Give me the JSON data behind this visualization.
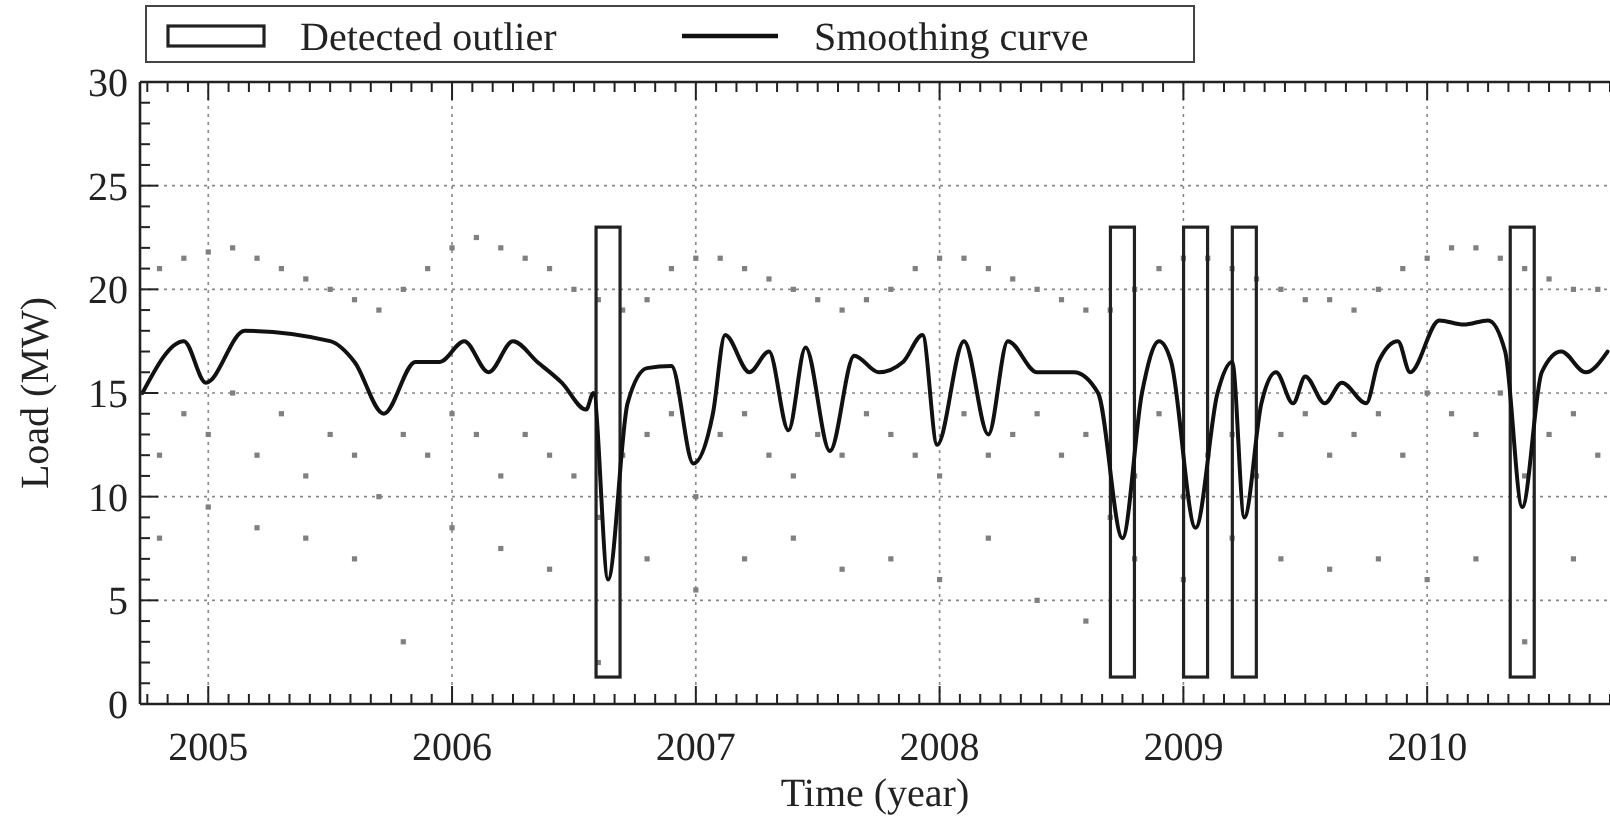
{
  "chart_data": {
    "type": "scatter",
    "xlabel": "Time (year)",
    "ylabel": "Load (MW)",
    "xlim": [
      2004.72,
      2010.75
    ],
    "ylim": [
      0,
      30
    ],
    "xticks": [
      {
        "value": 2004.75,
        "label": null
      },
      {
        "value": 2004.8333,
        "label": null
      },
      {
        "value": 2004.9167,
        "label": null
      },
      2005,
      {
        "value": 2005.0833,
        "label": null
      },
      {
        "value": 2005.1667,
        "label": null
      },
      {
        "value": 2005.25,
        "label": null
      },
      {
        "value": 2005.3333,
        "label": null
      },
      {
        "value": 2005.4167,
        "label": null
      },
      {
        "value": 2005.5,
        "label": null
      },
      {
        "value": 2005.5833,
        "label": null
      },
      {
        "value": 2005.6667,
        "label": null
      },
      {
        "value": 2005.75,
        "label": null
      },
      {
        "value": 2005.8333,
        "label": null
      },
      {
        "value": 2005.9167,
        "label": null
      },
      2006,
      {
        "value": 2006.0833,
        "label": null
      },
      {
        "value": 2006.1667,
        "label": null
      },
      {
        "value": 2006.25,
        "label": null
      },
      {
        "value": 2006.3333,
        "label": null
      },
      {
        "value": 2006.4167,
        "label": null
      },
      {
        "value": 2006.5,
        "label": null
      },
      {
        "value": 2006.5833,
        "label": null
      },
      {
        "value": 2006.6667,
        "label": null
      },
      {
        "value": 2006.75,
        "label": null
      },
      {
        "value": 2006.8333,
        "label": null
      },
      {
        "value": 2006.9167,
        "label": null
      },
      2007,
      {
        "value": 2007.0833,
        "label": null
      },
      {
        "value": 2007.1667,
        "label": null
      },
      {
        "value": 2007.25,
        "label": null
      },
      {
        "value": 2007.3333,
        "label": null
      },
      {
        "value": 2007.4167,
        "label": null
      },
      {
        "value": 2007.5,
        "label": null
      },
      {
        "value": 2007.5833,
        "label": null
      },
      {
        "value": 2007.6667,
        "label": null
      },
      {
        "value": 2007.75,
        "label": null
      },
      {
        "value": 2007.8333,
        "label": null
      },
      {
        "value": 2007.9167,
        "label": null
      },
      2008,
      {
        "value": 2008.0833,
        "label": null
      },
      {
        "value": 2008.1667,
        "label": null
      },
      {
        "value": 2008.25,
        "label": null
      },
      {
        "value": 2008.3333,
        "label": null
      },
      {
        "value": 2008.4167,
        "label": null
      },
      {
        "value": 2008.5,
        "label": null
      },
      {
        "value": 2008.5833,
        "label": null
      },
      {
        "value": 2008.6667,
        "label": null
      },
      {
        "value": 2008.75,
        "label": null
      },
      {
        "value": 2008.8333,
        "label": null
      },
      {
        "value": 2008.9167,
        "label": null
      },
      2009,
      {
        "value": 2009.0833,
        "label": null
      },
      {
        "value": 2009.1667,
        "label": null
      },
      {
        "value": 2009.25,
        "label": null
      },
      {
        "value": 2009.3333,
        "label": null
      },
      {
        "value": 2009.4167,
        "label": null
      },
      {
        "value": 2009.5,
        "label": null
      },
      {
        "value": 2009.5833,
        "label": null
      },
      {
        "value": 2009.6667,
        "label": null
      },
      {
        "value": 2009.75,
        "label": null
      },
      {
        "value": 2009.8333,
        "label": null
      },
      {
        "value": 2009.9167,
        "label": null
      },
      2010,
      {
        "value": 2010.0833,
        "label": null
      },
      {
        "value": 2010.1667,
        "label": null
      },
      {
        "value": 2010.25,
        "label": null
      },
      {
        "value": 2010.3333,
        "label": null
      },
      {
        "value": 2010.4167,
        "label": null
      },
      {
        "value": 2010.5,
        "label": null
      },
      {
        "value": 2010.5833,
        "label": null
      },
      {
        "value": 2010.6667,
        "label": null
      },
      {
        "value": 2010.75,
        "label": null
      }
    ],
    "yticks": [
      0,
      {
        "value": 1,
        "label": null
      },
      {
        "value": 2,
        "label": null
      },
      {
        "value": 3,
        "label": null
      },
      {
        "value": 4,
        "label": null
      },
      5,
      {
        "value": 6,
        "label": null
      },
      {
        "value": 7,
        "label": null
      },
      {
        "value": 8,
        "label": null
      },
      {
        "value": 9,
        "label": null
      },
      10,
      {
        "value": 11,
        "label": null
      },
      {
        "value": 12,
        "label": null
      },
      {
        "value": 13,
        "label": null
      },
      {
        "value": 14,
        "label": null
      },
      15,
      {
        "value": 16,
        "label": null
      },
      {
        "value": 17,
        "label": null
      },
      {
        "value": 18,
        "label": null
      },
      {
        "value": 19,
        "label": null
      },
      20,
      {
        "value": 21,
        "label": null
      },
      {
        "value": 22,
        "label": null
      },
      {
        "value": 23,
        "label": null
      },
      {
        "value": 24,
        "label": null
      },
      25,
      {
        "value": 26,
        "label": null
      },
      {
        "value": 27,
        "label": null
      },
      {
        "value": 28,
        "label": null
      },
      {
        "value": 29,
        "label": null
      },
      30
    ],
    "grid": true,
    "legend": "top left",
    "series": [
      {
        "color": "#808080",
        "marker": "square",
        "x": [
          2004.8,
          2004.9,
          2005.0,
          2005.1,
          2005.2,
          2005.3,
          2005.4,
          2005.5,
          2005.6,
          2005.7,
          2005.8,
          2005.9,
          2006.0,
          2006.1,
          2006.2,
          2006.3,
          2006.4,
          2006.5,
          2006.6,
          2006.7,
          2006.8,
          2006.9,
          2007.0,
          2007.1,
          2007.2,
          2007.3,
          2007.4,
          2007.5,
          2007.6,
          2007.7,
          2007.8,
          2007.9,
          2008.0,
          2008.1,
          2008.2,
          2008.3,
          2008.4,
          2008.5,
          2008.6,
          2008.7,
          2008.8,
          2008.9,
          2009.0,
          2009.1,
          2009.2,
          2009.3,
          2009.4,
          2009.5,
          2009.6,
          2009.7,
          2009.8,
          2009.9,
          2010.0,
          2010.1,
          2010.2,
          2010.3,
          2010.4,
          2010.5,
          2010.6,
          2010.7,
          2004.8,
          2004.9,
          2005.0,
          2005.1,
          2005.2,
          2005.3,
          2005.4,
          2005.5,
          2005.6,
          2005.7,
          2005.8,
          2005.9,
          2006.0,
          2006.1,
          2006.2,
          2006.3,
          2006.4,
          2006.5,
          2006.6,
          2006.7,
          2006.8,
          2006.9,
          2007.0,
          2007.1,
          2007.2,
          2007.3,
          2007.4,
          2007.5,
          2007.6,
          2007.7,
          2007.8,
          2007.9,
          2008.0,
          2008.1,
          2008.2,
          2008.3,
          2008.4,
          2008.5,
          2008.6,
          2008.7,
          2008.8,
          2008.9,
          2009.0,
          2009.1,
          2009.2,
          2009.3,
          2009.4,
          2009.5,
          2009.6,
          2009.7,
          2009.8,
          2009.9,
          2010.0,
          2010.1,
          2010.2,
          2010.3,
          2010.4,
          2010.5,
          2010.6,
          2010.7,
          2004.8,
          2005.0,
          2005.2,
          2005.4,
          2005.6,
          2005.8,
          2006.0,
          2006.2,
          2006.4,
          2006.6,
          2006.8,
          2007.0,
          2007.2,
          2007.4,
          2007.6,
          2007.8,
          2008.0,
          2008.2,
          2008.4,
          2008.6,
          2008.8,
          2009.0,
          2009.2,
          2009.4,
          2009.6,
          2009.8,
          2010.0,
          2010.2,
          2010.4,
          2010.6
        ],
        "values": [
          21,
          21.5,
          21.8,
          22,
          21.5,
          21,
          20.5,
          20,
          19.5,
          19,
          20,
          21,
          22,
          22.5,
          22,
          21.5,
          21,
          20,
          19.5,
          19,
          19.5,
          21,
          21.5,
          21.5,
          21,
          20.5,
          20,
          19.5,
          19,
          19.5,
          20,
          21,
          21.5,
          21.5,
          21,
          20.5,
          20,
          19.5,
          19,
          19,
          20,
          21,
          21.5,
          21.5,
          21,
          20.5,
          20,
          19.5,
          19.5,
          19,
          20,
          21,
          21.5,
          22,
          22,
          21.5,
          21,
          20.5,
          20,
          20,
          12,
          14,
          13,
          15,
          12,
          14,
          11,
          13,
          12,
          10,
          13,
          12,
          14,
          13,
          11,
          13,
          12,
          11,
          9,
          12,
          13,
          14,
          10,
          13,
          14,
          12,
          11,
          13,
          12,
          14,
          13,
          12,
          11,
          14,
          12,
          13,
          14,
          12,
          13,
          9,
          11,
          14,
          10,
          12,
          13,
          11,
          13,
          14,
          12,
          13,
          14,
          12,
          15,
          14,
          13,
          15,
          11,
          13,
          14,
          12,
          8,
          9.5,
          8.5,
          8,
          7,
          3,
          8.5,
          7.5,
          6.5,
          2,
          7,
          5.5,
          7,
          8,
          6.5,
          7,
          6,
          8,
          5,
          4,
          7,
          6,
          8,
          7,
          6.5,
          7,
          6,
          7,
          3,
          7
        ]
      },
      {
        "name": "Detected outlier",
        "type": "bar",
        "color": "#222222",
        "x": [
          2006.64,
          2008.75,
          2009.05,
          2009.25,
          2010.39
        ],
        "base": [
          1.3,
          1.3,
          1.3,
          1.3,
          1.3
        ],
        "values": [
          21.7,
          21.7,
          21.7,
          21.7,
          21.7
        ]
      },
      {
        "name": "Smoothing curve",
        "type": "line",
        "color": "#111111",
        "x": [
          2004.73,
          2004.9,
          2004.99,
          2005.15,
          2005.5,
          2005.6,
          2005.72,
          2005.85,
          2005.95,
          2006.05,
          2006.15,
          2006.25,
          2006.35,
          2006.45,
          2006.55,
          2006.58,
          2006.64,
          2006.72,
          2006.8,
          2006.9,
          2006.99,
          2007.07,
          2007.12,
          2007.22,
          2007.3,
          2007.38,
          2007.45,
          2007.55,
          2007.65,
          2007.75,
          2007.85,
          2007.93,
          2007.99,
          2008.1,
          2008.2,
          2008.28,
          2008.4,
          2008.55,
          2008.65,
          2008.75,
          2008.83,
          2008.9,
          2008.95,
          2009.05,
          2009.14,
          2009.2,
          2009.25,
          2009.32,
          2009.38,
          2009.45,
          2009.5,
          2009.58,
          2009.65,
          2009.75,
          2009.8,
          2009.88,
          2009.93,
          2010.05,
          2010.15,
          2010.25,
          2010.32,
          2010.39,
          2010.47,
          2010.55,
          2010.65,
          2010.74
        ],
        "values": [
          15,
          17.5,
          15.5,
          18,
          17.5,
          16.5,
          14,
          16.5,
          16.5,
          17.5,
          16,
          17.5,
          16.5,
          15.5,
          14.2,
          15,
          6,
          14.5,
          16.2,
          16.3,
          11.6,
          14,
          17.8,
          16,
          17,
          13.2,
          17.2,
          12.2,
          16.8,
          16,
          16.5,
          17.8,
          12.5,
          17.5,
          13,
          17.5,
          16,
          16,
          15,
          8,
          15,
          17.5,
          16.5,
          8.5,
          15,
          16.5,
          9,
          14.5,
          16,
          14.5,
          15.8,
          14.5,
          15.5,
          14.5,
          16.5,
          17.5,
          16,
          18.5,
          18.3,
          18.5,
          17,
          9.5,
          16,
          17,
          16,
          17
        ]
      }
    ]
  }
}
